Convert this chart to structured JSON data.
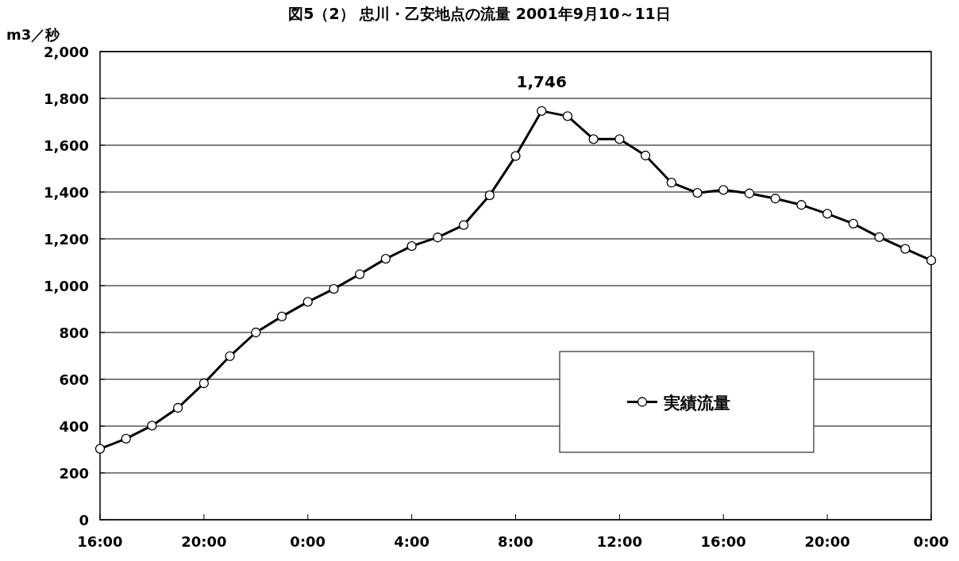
{
  "chart_data": {
    "type": "line",
    "title": "図5（2） 忠川・乙安地点の流量 2001年9月10～11日",
    "ylabel": "m3／秒",
    "x": [
      "2001-09-10T16:00",
      "2001-09-10T17:00",
      "2001-09-10T18:00",
      "2001-09-10T19:00",
      "2001-09-10T20:00",
      "2001-09-10T21:00",
      "2001-09-10T22:00",
      "2001-09-10T23:00",
      "2001-09-11T00:00",
      "2001-09-11T01:00",
      "2001-09-11T02:00",
      "2001-09-11T03:00",
      "2001-09-11T04:00",
      "2001-09-11T05:00",
      "2001-09-11T06:00",
      "2001-09-11T07:00",
      "2001-09-11T08:00",
      "2001-09-11T09:00",
      "2001-09-11T10:00",
      "2001-09-11T11:00",
      "2001-09-11T12:00",
      "2001-09-11T13:00",
      "2001-09-11T14:00",
      "2001-09-11T15:00",
      "2001-09-11T16:00",
      "2001-09-11T17:00",
      "2001-09-11T18:00",
      "2001-09-11T19:00",
      "2001-09-11T20:00",
      "2001-09-11T21:00",
      "2001-09-11T22:00",
      "2001-09-11T23:00",
      "2001-09-12T00:00"
    ],
    "series": [
      {
        "name": "実績流量",
        "color": "#000000",
        "values": [
          303,
          346,
          402,
          478,
          583,
          699,
          800,
          868,
          931,
          986,
          1049,
          1115,
          1169,
          1206,
          1259,
          1386,
          1554,
          1746,
          1724,
          1626,
          1626,
          1556,
          1440,
          1396,
          1409,
          1394,
          1372,
          1345,
          1307,
          1265,
          1207,
          1157,
          1108
        ]
      }
    ],
    "xlim": [
      "2001-09-10T16:00",
      "2001-09-12T00:00"
    ],
    "xticks": [
      {
        "value": "2001-09-10T16:00",
        "label": "16:00"
      },
      {
        "value": "2001-09-10T20:00",
        "label": "20:00"
      },
      {
        "value": "2001-09-11T00:00",
        "label": "0:00"
      },
      {
        "value": "2001-09-11T04:00",
        "label": "4:00"
      },
      {
        "value": "2001-09-11T08:00",
        "label": "8:00"
      },
      {
        "value": "2001-09-11T12:00",
        "label": "12:00"
      },
      {
        "value": "2001-09-11T16:00",
        "label": "16:00"
      },
      {
        "value": "2001-09-11T20:00",
        "label": "20:00"
      },
      {
        "value": "2001-09-12T00:00",
        "label": "0:00"
      }
    ],
    "ylim": [
      0,
      2000
    ],
    "yticks": [
      0,
      200,
      400,
      600,
      800,
      {
        "value": 1000,
        "label": "1,000"
      },
      {
        "value": 1200,
        "label": "1,200"
      },
      {
        "value": 1400,
        "label": "1,400"
      },
      {
        "value": 1600,
        "label": "1,600"
      },
      {
        "value": 1800,
        "label": "1,800"
      },
      {
        "value": 2000,
        "label": "2,000"
      }
    ],
    "annotations": [
      {
        "text": "1,746",
        "x": "2001-09-11T09:00",
        "y": 1746
      }
    ],
    "grid": "y",
    "legend": "bottom right",
    "marker": "circle",
    "line_style": "solid"
  }
}
